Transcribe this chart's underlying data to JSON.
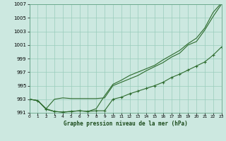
{
  "xlabel": "Graphe pression niveau de la mer (hPa)",
  "bg_color": "#cce8e0",
  "grid_color": "#99ccbb",
  "line_color": "#2d6b2d",
  "hours": [
    0,
    1,
    2,
    3,
    4,
    5,
    6,
    7,
    8,
    9,
    10,
    11,
    12,
    13,
    14,
    15,
    16,
    17,
    18,
    19,
    20,
    21,
    22,
    23
  ],
  "line1": [
    993.0,
    992.8,
    991.5,
    991.2,
    991.1,
    991.2,
    991.3,
    991.2,
    991.3,
    991.3,
    993.0,
    993.3,
    993.8,
    994.2,
    994.6,
    995.0,
    995.5,
    996.2,
    996.7,
    997.3,
    997.9,
    998.5,
    999.5,
    1000.7
  ],
  "line2": [
    993.0,
    992.8,
    991.6,
    993.0,
    993.2,
    993.1,
    993.1,
    993.1,
    993.1,
    993.2,
    995.0,
    995.5,
    996.0,
    996.5,
    997.2,
    997.8,
    998.4,
    999.2,
    999.8,
    1001.0,
    1001.5,
    1003.2,
    1005.2,
    1007.0
  ],
  "line3": [
    993.0,
    992.8,
    991.6,
    991.2,
    991.1,
    991.2,
    991.3,
    991.2,
    991.6,
    993.5,
    995.2,
    995.8,
    996.5,
    997.0,
    997.5,
    998.0,
    998.8,
    999.5,
    1000.2,
    1001.2,
    1002.0,
    1003.5,
    1005.8,
    1007.2
  ],
  "ylim_min": 991,
  "ylim_max": 1007,
  "yticks": [
    991,
    993,
    995,
    997,
    999,
    1001,
    1003,
    1005,
    1007
  ]
}
